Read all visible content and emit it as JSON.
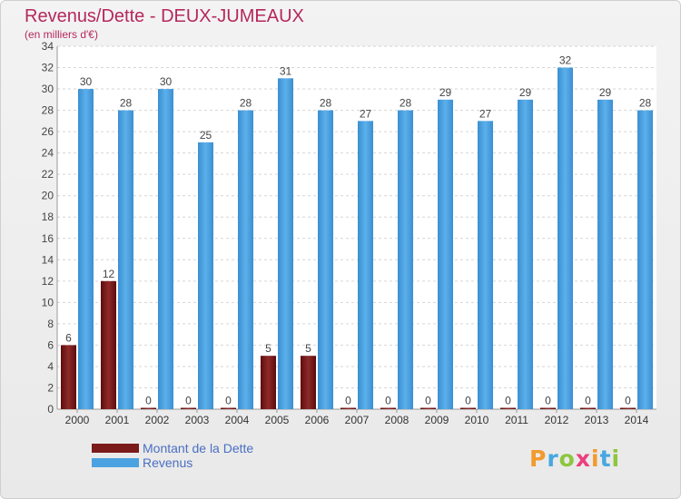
{
  "header": {
    "title": "Revenus/Dette - DEUX-JUMEAUX",
    "subtitle": "(en milliers d'€)"
  },
  "legend": {
    "items": [
      {
        "label": "Montant de la Dette",
        "color": "#7a1a1a"
      },
      {
        "label": "Revenus",
        "color": "#4ba2e0"
      }
    ]
  },
  "logo": {
    "text": "Proxiti",
    "letters": [
      "P",
      "r",
      "o",
      "x",
      "i",
      "t",
      "i"
    ]
  },
  "chart_data": {
    "type": "bar",
    "title": "Revenus/Dette - DEUX-JUMEAUX",
    "subtitle": "(en milliers d'€)",
    "categories": [
      "2000",
      "2001",
      "2002",
      "2003",
      "2004",
      "2005",
      "2006",
      "2007",
      "2008",
      "2009",
      "2010",
      "2011",
      "2012",
      "2013",
      "2014"
    ],
    "series": [
      {
        "name": "Montant de la Dette",
        "color": "#7a1a1a",
        "values": [
          6,
          12,
          0,
          0,
          0,
          5,
          5,
          0,
          0,
          0,
          0,
          0,
          0,
          0,
          0
        ]
      },
      {
        "name": "Revenus",
        "color": "#4ba2e0",
        "values": [
          30,
          28,
          30,
          25,
          28,
          31,
          28,
          27,
          28,
          29,
          27,
          29,
          32,
          29,
          28
        ]
      }
    ],
    "ylim": [
      0,
      34
    ],
    "ytick_step": 2,
    "grid": true,
    "legend_position": "bottom-left"
  }
}
